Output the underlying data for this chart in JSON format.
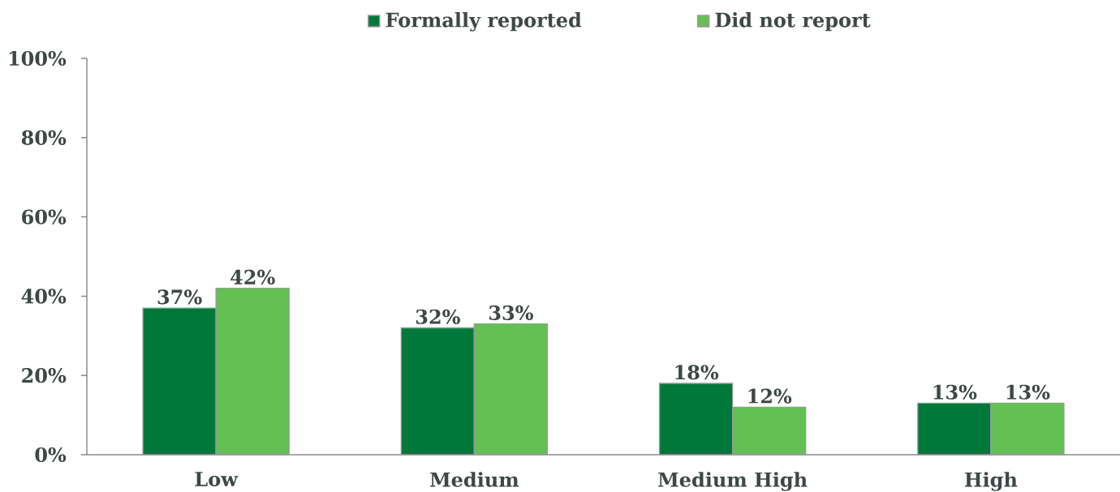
{
  "chart_data": {
    "type": "bar",
    "categories": [
      "Low",
      "Medium",
      "Medium High",
      "High"
    ],
    "series": [
      {
        "name": "Formally reported",
        "color": "#00783a",
        "values": [
          37,
          32,
          18,
          13
        ],
        "value_labels": [
          "37%",
          "32%",
          "18%",
          "13%"
        ]
      },
      {
        "name": "Did not report",
        "color": "#62c152",
        "values": [
          42,
          33,
          12,
          13
        ],
        "value_labels": [
          "42%",
          "33%",
          "12%",
          "13%"
        ]
      }
    ],
    "ylim": [
      0,
      100
    ],
    "yticks": [
      {
        "value": 0,
        "label": "0%"
      },
      {
        "value": 20,
        "label": "20%"
      },
      {
        "value": 40,
        "label": "40%"
      },
      {
        "value": 60,
        "label": "60%"
      },
      {
        "value": 80,
        "label": "80%"
      },
      {
        "value": 100,
        "label": "100%"
      }
    ],
    "legend": "top"
  }
}
